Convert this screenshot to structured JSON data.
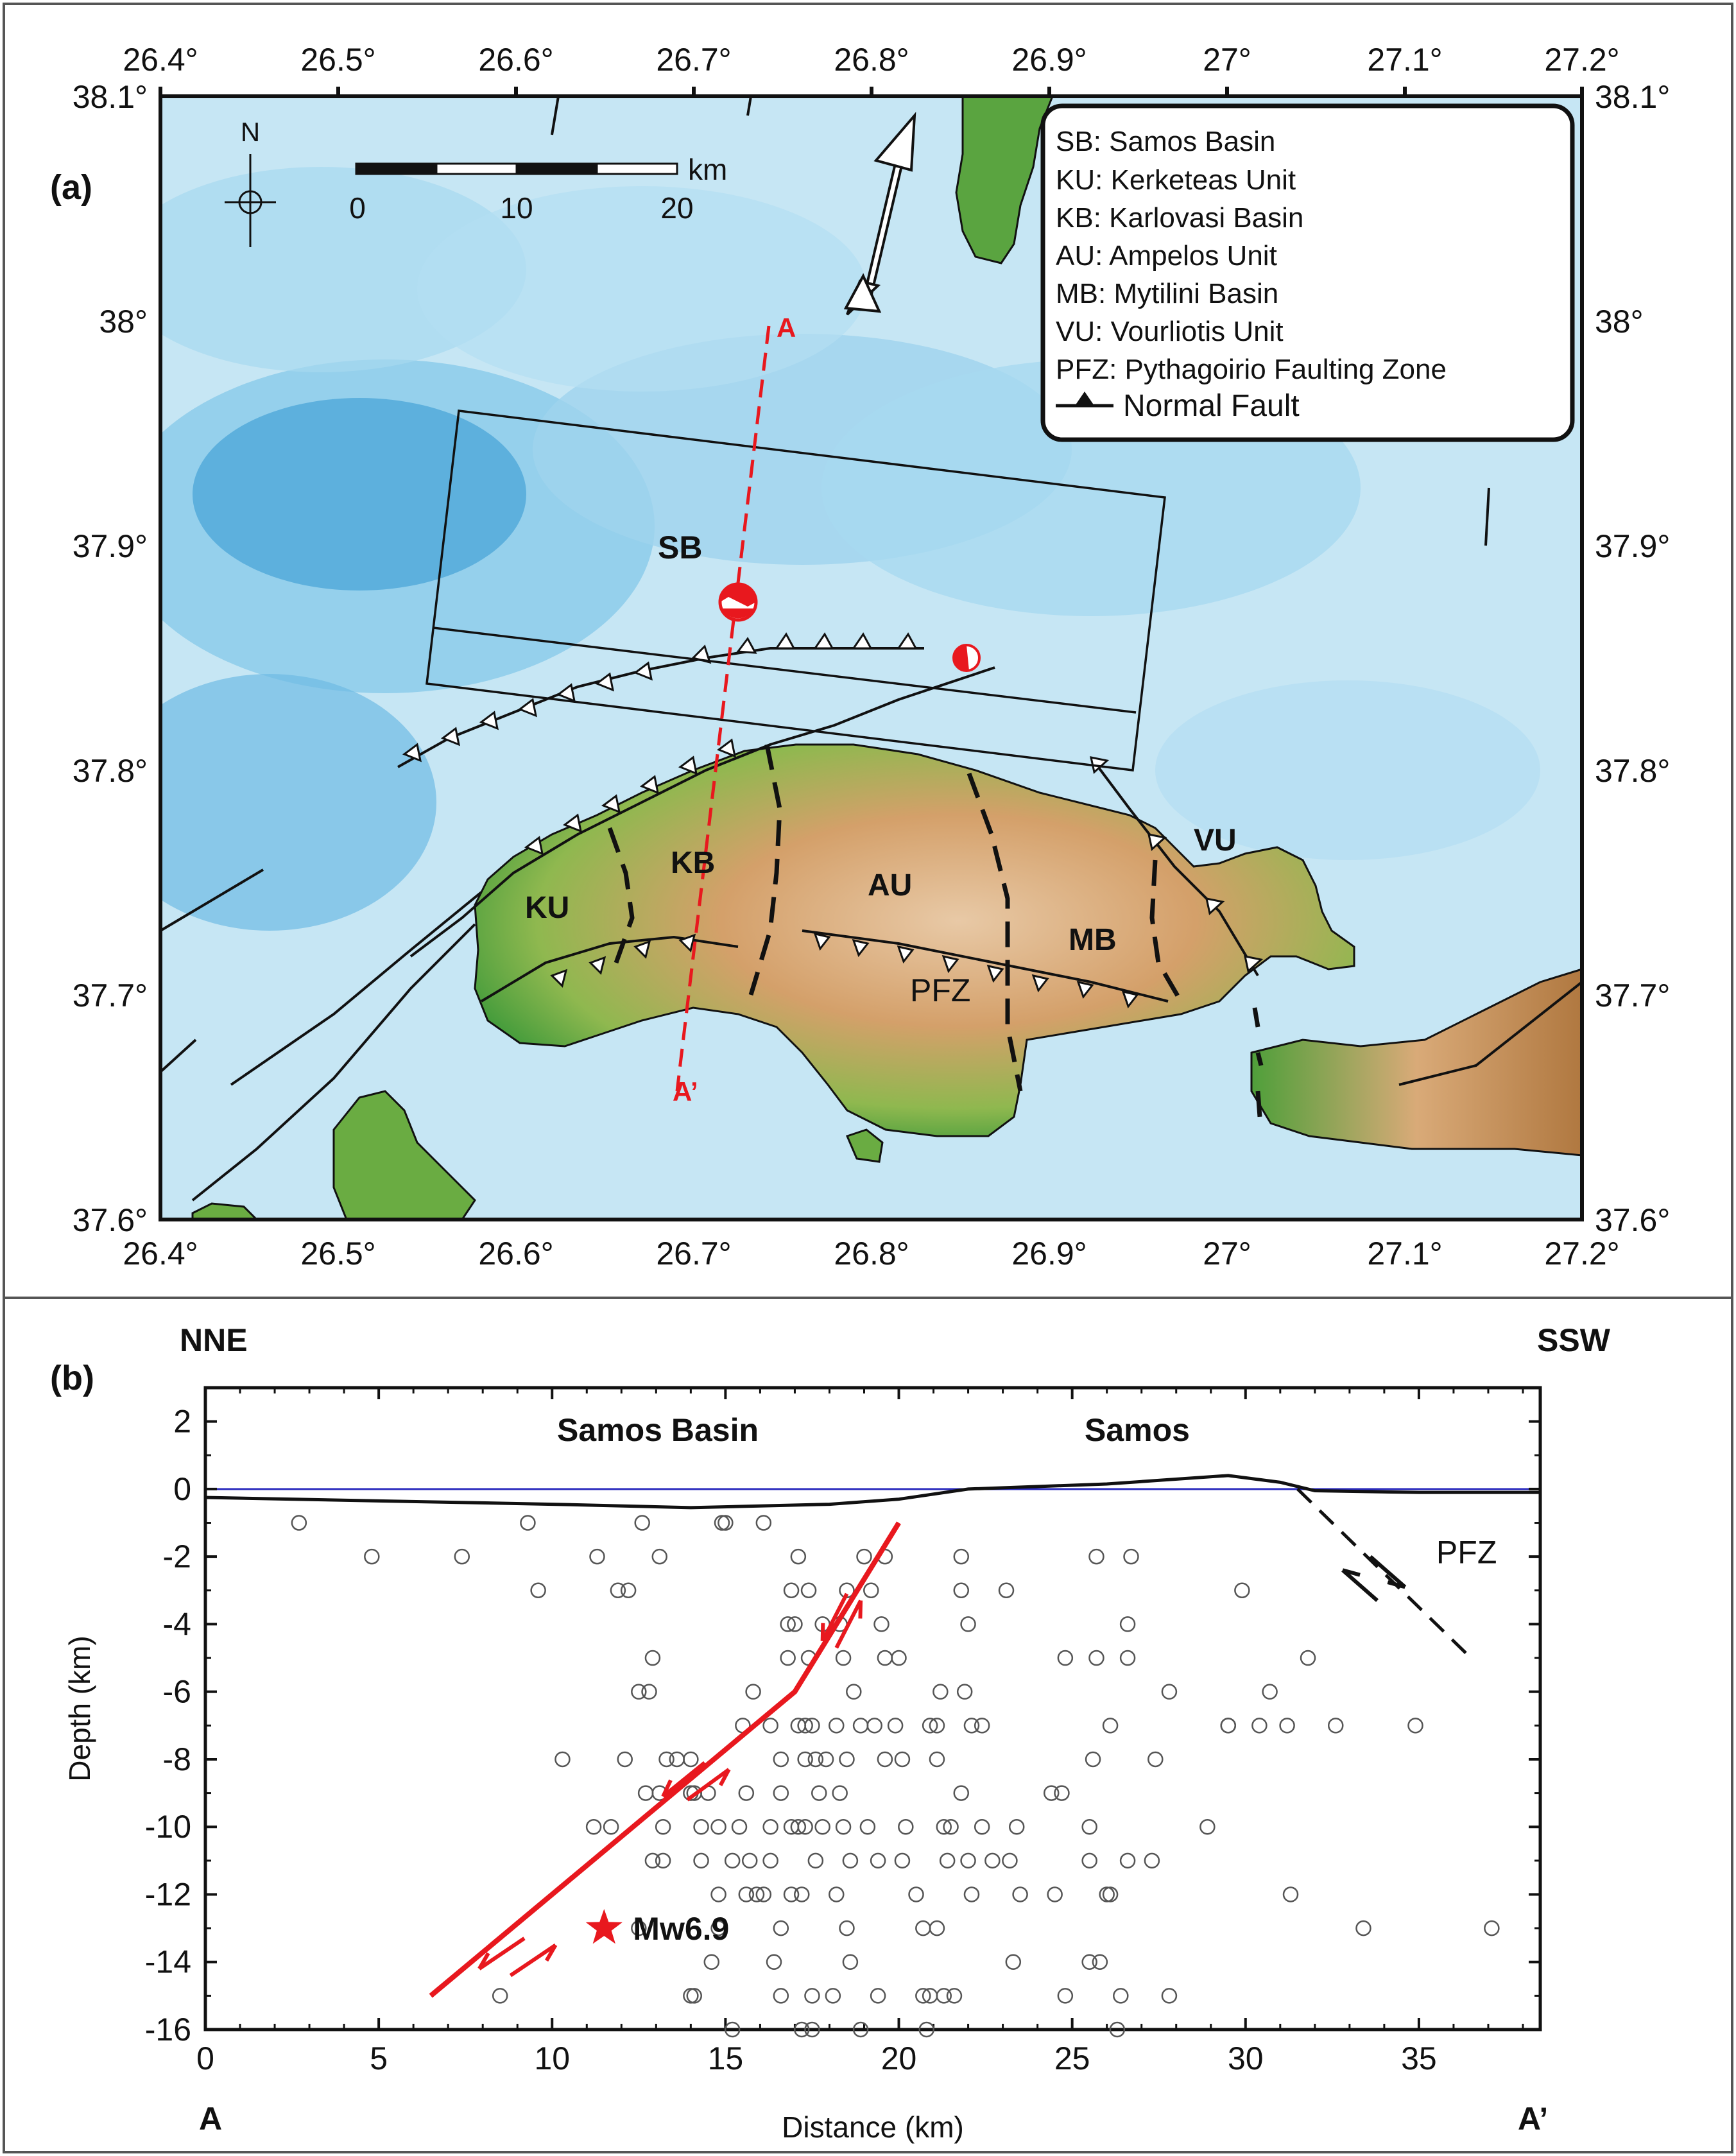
{
  "panel_a": {
    "label": "(a)",
    "lon_ticks": [
      "26.4°",
      "26.5°",
      "26.6°",
      "26.7°",
      "26.8°",
      "26.9°",
      "27°",
      "27.1°",
      "27.2°"
    ],
    "lat_ticks": [
      "38.1°",
      "38°",
      "37.9°",
      "37.8°",
      "37.7°",
      "37.6°"
    ],
    "north_label": "N",
    "scale_bar": {
      "unit": "km",
      "labels": [
        "0",
        "10",
        "20"
      ]
    },
    "profile_start_label": "A",
    "profile_end_label": "A’",
    "legend": [
      "SB: Samos Basin",
      "KU: Kerketeas Unit",
      "KB: Karlovasi Basin",
      "AU: Ampelos Unit",
      "MB: Mytilini Basin",
      "VU: Vourliotis Unit",
      "PFZ: Pythagoirio Faulting Zone",
      "Normal Fault"
    ],
    "map_labels": {
      "SB": "SB",
      "KU": "KU",
      "KB": "KB",
      "AU": "AU",
      "MB": "MB",
      "VU": "VU",
      "PFZ": "PFZ"
    },
    "colors": {
      "sea_light": "#cdeaf6",
      "sea_mid": "#9ed4ee",
      "sea_dark": "#4aa6d8",
      "land_green": "#4f9f3a",
      "land_tan": "#d9aa78",
      "profile_red": "#e8181e"
    }
  },
  "panel_b": {
    "label": "(b)",
    "left_direction": "NNE",
    "right_direction": "SSW",
    "region_left": "Samos Basin",
    "region_right": "Samos",
    "y_axis_label": "Depth (km)",
    "x_axis_label": "Distance (km)",
    "x_start_label": "A",
    "x_end_label": "A’",
    "x_ticks": [
      "0",
      "5",
      "10",
      "15",
      "20",
      "25",
      "30",
      "35"
    ],
    "y_ticks": [
      "2",
      "0",
      "-2",
      "-4",
      "-6",
      "-8",
      "-10",
      "-12",
      "-14",
      "-16"
    ],
    "mainshock_label": "Mw6.9",
    "pfz_label": "PFZ",
    "chart_data": {
      "type": "scatter",
      "xlim": [
        0,
        38.5
      ],
      "ylim": [
        -16,
        3
      ],
      "mainshock": {
        "x": 11.5,
        "y": -13
      },
      "main_fault": [
        [
          6.5,
          -15
        ],
        [
          17,
          -6
        ],
        [
          20,
          -1
        ]
      ],
      "pfz_fault": [
        [
          31.5,
          0
        ],
        [
          36.5,
          -5
        ]
      ],
      "topography": [
        [
          0,
          -0.25
        ],
        [
          5,
          -0.35
        ],
        [
          10,
          -0.45
        ],
        [
          14,
          -0.55
        ],
        [
          18,
          -0.45
        ],
        [
          20,
          -0.3
        ],
        [
          22,
          0
        ],
        [
          26,
          0.15
        ],
        [
          29.5,
          0.4
        ],
        [
          31,
          0.2
        ],
        [
          32,
          -0.05
        ],
        [
          35,
          -0.1
        ],
        [
          38.5,
          -0.1
        ]
      ],
      "aftershocks": [
        [
          2.7,
          -1
        ],
        [
          9.3,
          -1
        ],
        [
          12.6,
          -1
        ],
        [
          14.9,
          -1
        ],
        [
          15,
          -1
        ],
        [
          16.1,
          -1
        ],
        [
          4.8,
          -2
        ],
        [
          7.4,
          -2
        ],
        [
          11.3,
          -2
        ],
        [
          13.1,
          -2
        ],
        [
          17.1,
          -2
        ],
        [
          19,
          -2
        ],
        [
          19.6,
          -2
        ],
        [
          21.8,
          -2
        ],
        [
          25.7,
          -2
        ],
        [
          26.7,
          -2
        ],
        [
          9.6,
          -3
        ],
        [
          11.9,
          -3
        ],
        [
          12.2,
          -3
        ],
        [
          16.9,
          -3
        ],
        [
          17.4,
          -3
        ],
        [
          18.5,
          -3
        ],
        [
          19.2,
          -3
        ],
        [
          21.8,
          -3
        ],
        [
          23.1,
          -3
        ],
        [
          29.9,
          -3
        ],
        [
          16.8,
          -4
        ],
        [
          17,
          -4
        ],
        [
          17.8,
          -4
        ],
        [
          18.3,
          -4
        ],
        [
          19.5,
          -4
        ],
        [
          22,
          -4
        ],
        [
          26.6,
          -4
        ],
        [
          12.9,
          -5
        ],
        [
          16.8,
          -5
        ],
        [
          17.4,
          -5
        ],
        [
          18.4,
          -5
        ],
        [
          19.6,
          -5
        ],
        [
          20,
          -5
        ],
        [
          24.8,
          -5
        ],
        [
          25.7,
          -5
        ],
        [
          26.6,
          -5
        ],
        [
          31.8,
          -5
        ],
        [
          12.5,
          -6
        ],
        [
          12.8,
          -6
        ],
        [
          15.8,
          -6
        ],
        [
          18.7,
          -6
        ],
        [
          21.2,
          -6
        ],
        [
          21.9,
          -6
        ],
        [
          27.8,
          -6
        ],
        [
          30.7,
          -6
        ],
        [
          15.5,
          -7
        ],
        [
          16.3,
          -7
        ],
        [
          17.1,
          -7
        ],
        [
          17.3,
          -7
        ],
        [
          17.5,
          -7
        ],
        [
          18.2,
          -7
        ],
        [
          18.9,
          -7
        ],
        [
          19.3,
          -7
        ],
        [
          19.9,
          -7
        ],
        [
          20.9,
          -7
        ],
        [
          21.1,
          -7
        ],
        [
          22.1,
          -7
        ],
        [
          22.4,
          -7
        ],
        [
          26.1,
          -7
        ],
        [
          29.5,
          -7
        ],
        [
          29.5,
          -7
        ],
        [
          30.4,
          -7
        ],
        [
          31.2,
          -7
        ],
        [
          32.6,
          -7
        ],
        [
          34.9,
          -7
        ],
        [
          10.3,
          -8
        ],
        [
          12.1,
          -8
        ],
        [
          13.3,
          -8
        ],
        [
          13.6,
          -8
        ],
        [
          14,
          -8
        ],
        [
          16.6,
          -8
        ],
        [
          17.3,
          -8
        ],
        [
          17.6,
          -8
        ],
        [
          17.9,
          -8
        ],
        [
          18.5,
          -8
        ],
        [
          19.6,
          -8
        ],
        [
          20.1,
          -8
        ],
        [
          21.1,
          -8
        ],
        [
          25.6,
          -8
        ],
        [
          27.4,
          -8
        ],
        [
          12.7,
          -9
        ],
        [
          13.1,
          -9
        ],
        [
          14,
          -9
        ],
        [
          14.1,
          -9
        ],
        [
          14.5,
          -9
        ],
        [
          15.6,
          -9
        ],
        [
          16.6,
          -9
        ],
        [
          17.7,
          -9
        ],
        [
          18.3,
          -9
        ],
        [
          21.8,
          -9
        ],
        [
          24.4,
          -9
        ],
        [
          24.7,
          -9
        ],
        [
          11.2,
          -10
        ],
        [
          11.7,
          -10
        ],
        [
          13.2,
          -10
        ],
        [
          14.3,
          -10
        ],
        [
          14.8,
          -10
        ],
        [
          15.4,
          -10
        ],
        [
          16.3,
          -10
        ],
        [
          16.9,
          -10
        ],
        [
          17.1,
          -10
        ],
        [
          17.3,
          -10
        ],
        [
          17.8,
          -10
        ],
        [
          18.4,
          -10
        ],
        [
          19.1,
          -10
        ],
        [
          20.2,
          -10
        ],
        [
          21.3,
          -10
        ],
        [
          21.5,
          -10
        ],
        [
          22.4,
          -10
        ],
        [
          23.4,
          -10
        ],
        [
          25.5,
          -10
        ],
        [
          28.9,
          -10
        ],
        [
          12.9,
          -11
        ],
        [
          13.2,
          -11
        ],
        [
          14.3,
          -11
        ],
        [
          15.2,
          -11
        ],
        [
          15.7,
          -11
        ],
        [
          16.3,
          -11
        ],
        [
          17.6,
          -11
        ],
        [
          18.6,
          -11
        ],
        [
          19.4,
          -11
        ],
        [
          20.1,
          -11
        ],
        [
          21.4,
          -11
        ],
        [
          22,
          -11
        ],
        [
          22.7,
          -11
        ],
        [
          23.2,
          -11
        ],
        [
          25.5,
          -11
        ],
        [
          26.6,
          -11
        ],
        [
          27.3,
          -11
        ],
        [
          14.8,
          -12
        ],
        [
          15.6,
          -12
        ],
        [
          15.9,
          -12
        ],
        [
          16.1,
          -12
        ],
        [
          16.9,
          -12
        ],
        [
          17.2,
          -12
        ],
        [
          18.2,
          -12
        ],
        [
          20.5,
          -12
        ],
        [
          22.1,
          -12
        ],
        [
          23.5,
          -12
        ],
        [
          24.5,
          -12
        ],
        [
          26,
          -12
        ],
        [
          26.1,
          -12
        ],
        [
          31.3,
          -12
        ],
        [
          12.5,
          -13
        ],
        [
          14.8,
          -13
        ],
        [
          16.6,
          -13
        ],
        [
          18.5,
          -13
        ],
        [
          20.7,
          -13
        ],
        [
          21.1,
          -13
        ],
        [
          33.4,
          -13
        ],
        [
          37.1,
          -13
        ],
        [
          14.6,
          -14
        ],
        [
          16.4,
          -14
        ],
        [
          18.6,
          -14
        ],
        [
          23.3,
          -14
        ],
        [
          25.5,
          -14
        ],
        [
          25.8,
          -14
        ],
        [
          8.5,
          -15
        ],
        [
          14,
          -15
        ],
        [
          14.1,
          -15
        ],
        [
          16.6,
          -15
        ],
        [
          17.5,
          -15
        ],
        [
          18.1,
          -15
        ],
        [
          19.4,
          -15
        ],
        [
          20.7,
          -15
        ],
        [
          20.9,
          -15
        ],
        [
          21.3,
          -15
        ],
        [
          21.6,
          -15
        ],
        [
          24.8,
          -15
        ],
        [
          26.4,
          -15
        ],
        [
          27.8,
          -15
        ],
        [
          15.2,
          -16
        ],
        [
          17.2,
          -16
        ],
        [
          17.5,
          -16
        ],
        [
          18.9,
          -16
        ],
        [
          20.8,
          -16
        ],
        [
          26.3,
          -16
        ]
      ]
    }
  }
}
